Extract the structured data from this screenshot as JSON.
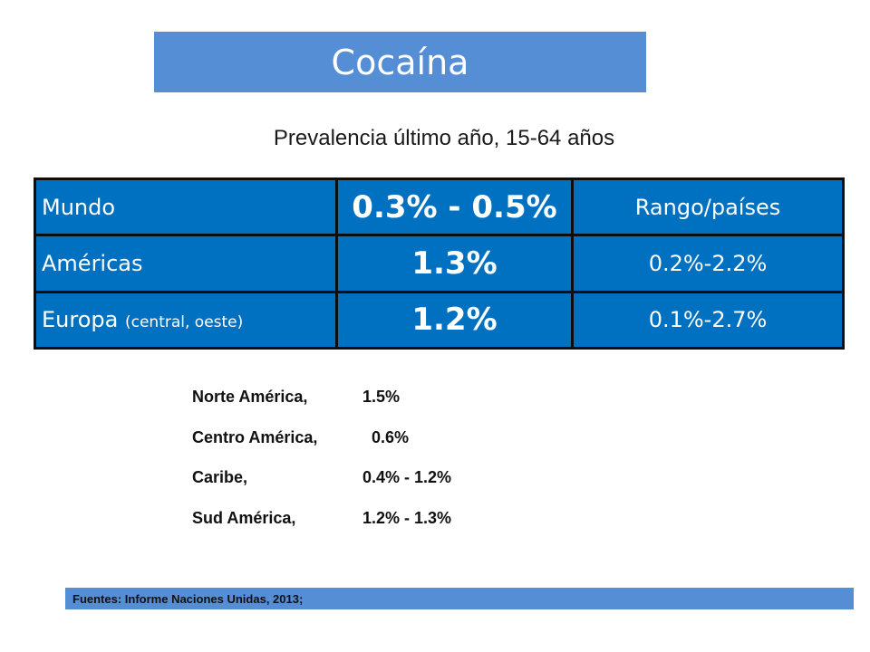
{
  "title": "Cocaína",
  "subtitle": "Prevalencia último año, 15-64 años",
  "table": {
    "rows": [
      {
        "region": "Mundo",
        "qualifier": "",
        "value": "0.3% - 0.5%",
        "range": "Rango/países"
      },
      {
        "region": "Américas",
        "qualifier": "",
        "value": "1.3%",
        "range": "0.2%-2.2%"
      },
      {
        "region": "Europa",
        "qualifier": "(central, oeste)",
        "value": "1.2%",
        "range": "0.1%-2.7%"
      }
    ]
  },
  "subregions": [
    {
      "name": "Norte América,",
      "value": "1.5%"
    },
    {
      "name": "Centro América,",
      "value": "  0.6%"
    },
    {
      "name": "Caribe,",
      "value": "0.4% - 1.2%"
    },
    {
      "name": "Sud América,",
      "value": "1.2% - 1.3%"
    }
  ],
  "footer": "Fuentes: Informe Naciones Unidas, 2013;",
  "colors": {
    "title_bg": "#558ed5",
    "table_bg": "#0070c0",
    "footer_bg": "#558ed5"
  }
}
